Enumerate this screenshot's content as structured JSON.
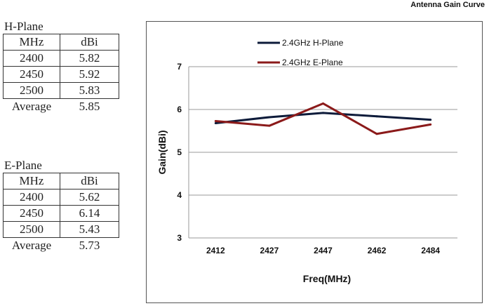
{
  "chart_title": "Antenna Gain Curve",
  "h_plane": {
    "title": "H-Plane",
    "headers": [
      "MHz",
      "dBi"
    ],
    "rows": [
      [
        "2400",
        "5.82"
      ],
      [
        "2450",
        "5.92"
      ],
      [
        "2500",
        "5.83"
      ]
    ],
    "avg_label": "Average",
    "avg_value": "5.85"
  },
  "e_plane": {
    "title": "E-Plane",
    "headers": [
      "MHz",
      "dBi"
    ],
    "rows": [
      [
        "2400",
        "5.62"
      ],
      [
        "2450",
        "6.14"
      ],
      [
        "2500",
        "5.43"
      ]
    ],
    "avg_label": "Average",
    "avg_value": "5.73"
  },
  "chart_data": {
    "type": "line",
    "title": "Antenna Gain Curve",
    "xlabel": "Freq(MHz)",
    "ylabel": "Gain(dBi)",
    "categories": [
      "2412",
      "2427",
      "2447",
      "2462",
      "2484"
    ],
    "ylim": [
      3,
      7
    ],
    "yticks": [
      3,
      4,
      5,
      6,
      7
    ],
    "grid": true,
    "legend": "top-left",
    "series": [
      {
        "name": "2.4GHz H-Plane",
        "color": "#0d1b3a",
        "values": [
          5.68,
          5.82,
          5.92,
          5.84,
          5.76
        ]
      },
      {
        "name": "2.4GHz E-Plane",
        "color": "#8b1a1a",
        "values": [
          5.73,
          5.62,
          6.14,
          5.43,
          5.65
        ]
      }
    ]
  }
}
